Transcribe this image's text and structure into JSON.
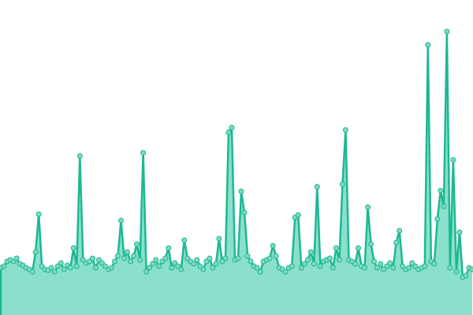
{
  "chart_data": {
    "type": "area",
    "line_color": "#1db894",
    "fill_color": "#8be0cb",
    "marker_color": "#7fd9c3",
    "ylim": [
      0,
      400
    ],
    "values": [
      60,
      62,
      68,
      70,
      68,
      72,
      65,
      63,
      60,
      58,
      55,
      80,
      128,
      62,
      58,
      57,
      60,
      55,
      62,
      66,
      58,
      63,
      60,
      85,
      62,
      202,
      70,
      66,
      68,
      72,
      60,
      70,
      66,
      62,
      58,
      60,
      68,
      75,
      120,
      72,
      80,
      68,
      75,
      90,
      70,
      206,
      55,
      60,
      65,
      70,
      62,
      68,
      72,
      85,
      60,
      66,
      62,
      58,
      95,
      72,
      68,
      65,
      70,
      62,
      58,
      68,
      72,
      60,
      65,
      97,
      68,
      72,
      232,
      238,
      70,
      72,
      157,
      130,
      75,
      68,
      62,
      60,
      55,
      68,
      70,
      72,
      88,
      75,
      60,
      58,
      55,
      60,
      62,
      124,
      127,
      60,
      65,
      70,
      80,
      65,
      163,
      62,
      68,
      70,
      72,
      60,
      85,
      70,
      166,
      235,
      70,
      68,
      65,
      85,
      62,
      60,
      137,
      90,
      68,
      60,
      65,
      58,
      62,
      66,
      60,
      92,
      107,
      62,
      58,
      60,
      66,
      62,
      58,
      60,
      62,
      343,
      68,
      65,
      122,
      158,
      138,
      360,
      60,
      197,
      55,
      105,
      48,
      50,
      60,
      58
    ]
  }
}
